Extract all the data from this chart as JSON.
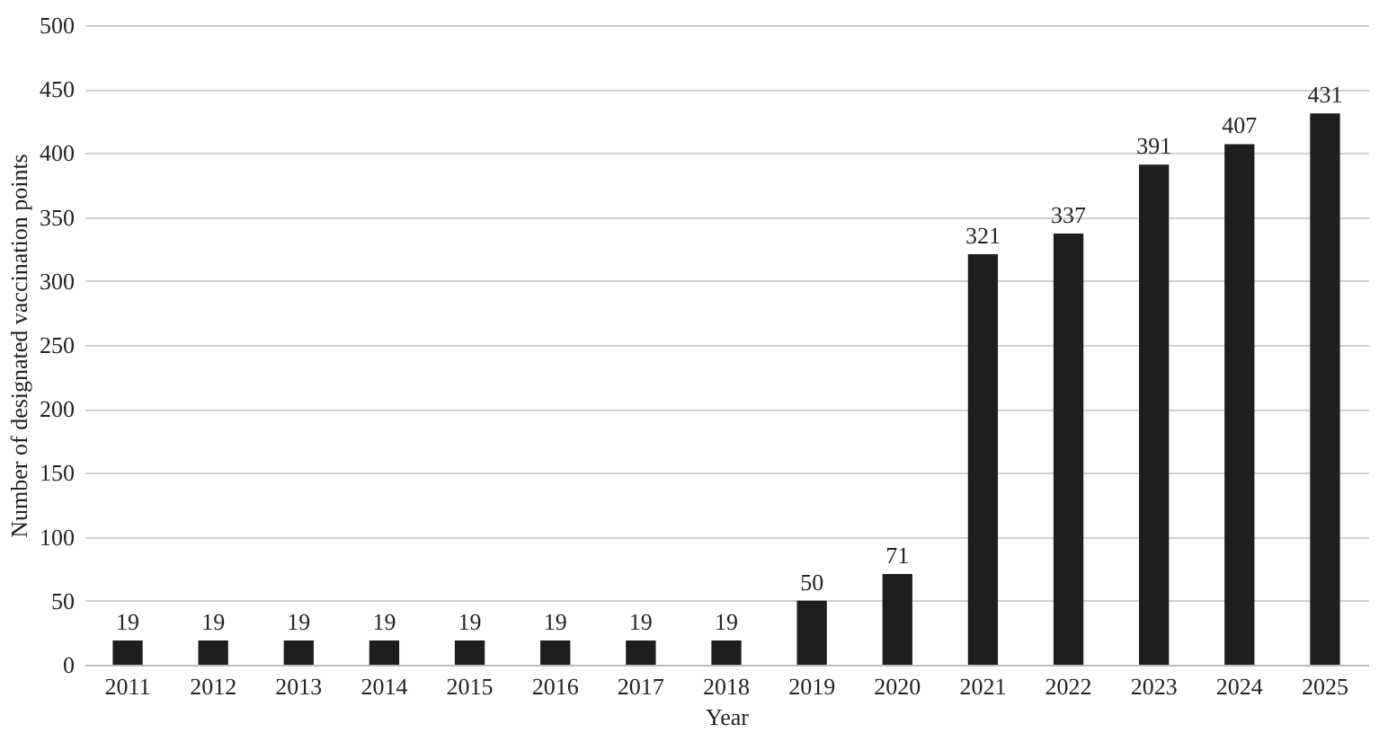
{
  "chart_data": {
    "type": "bar",
    "xlabel": "Year",
    "ylabel": "Number of designated vaccination points",
    "categories": [
      "2011",
      "2012",
      "2013",
      "2014",
      "2015",
      "2016",
      "2017",
      "2018",
      "2019",
      "2020",
      "2021",
      "2022",
      "2023",
      "2024",
      "2025"
    ],
    "values": [
      19,
      19,
      19,
      19,
      19,
      19,
      19,
      19,
      50,
      71,
      321,
      337,
      391,
      407,
      431
    ],
    "color": "#1e1e1e",
    "ylim": [
      0,
      500
    ],
    "yticks": [
      0,
      50,
      100,
      150,
      200,
      250,
      300,
      350,
      400,
      450,
      500
    ],
    "grid": "y",
    "data_labels": true
  }
}
